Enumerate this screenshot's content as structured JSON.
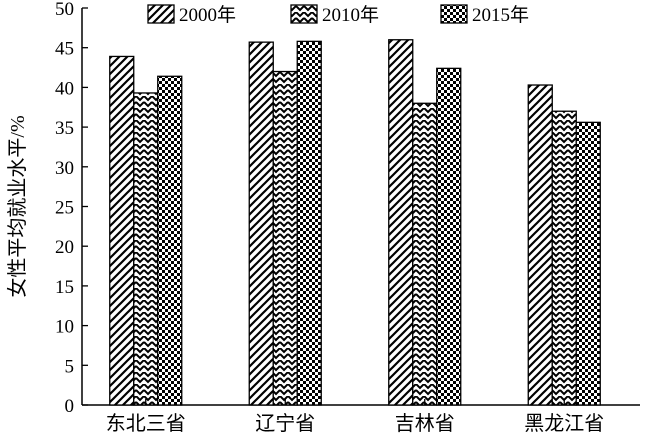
{
  "chart_data": {
    "type": "bar",
    "ylabel": "女性平均就业水平/%",
    "ylim": [
      0,
      50
    ],
    "yticks": [
      0,
      5,
      10,
      15,
      20,
      25,
      30,
      35,
      40,
      45,
      50
    ],
    "categories": [
      "东北三省",
      "辽宁省",
      "吉林省",
      "黑龙江省"
    ],
    "series": [
      {
        "name": "2000年",
        "pattern": "diag-hatch",
        "values": [
          43.9,
          45.7,
          46.0,
          40.3
        ]
      },
      {
        "name": "2010年",
        "pattern": "zigzag-hatch",
        "values": [
          39.3,
          42.0,
          38.0,
          37.0
        ]
      },
      {
        "name": "2015年",
        "pattern": "checker",
        "values": [
          41.4,
          45.8,
          42.4,
          35.6
        ]
      }
    ],
    "legend_position": "top",
    "grid": false
  }
}
